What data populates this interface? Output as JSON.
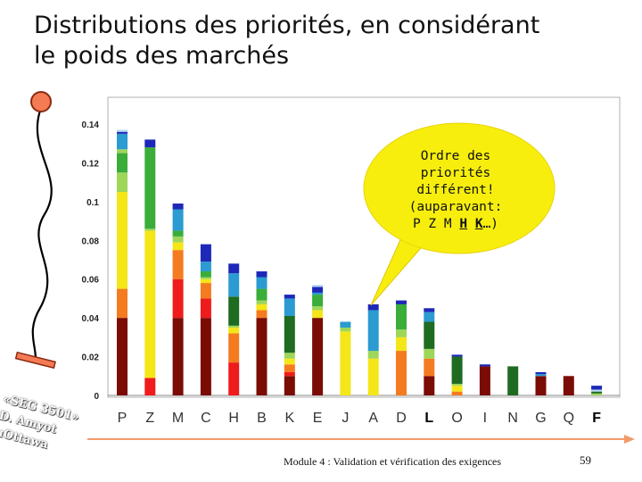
{
  "slide": {
    "title_line1": "Distributions des priorités, en considérant",
    "title_line2": "le poids des marchés",
    "callout": {
      "line1": "Ordre des",
      "line2": "priorités",
      "line3": "différent!",
      "line4": "(auparavant:",
      "line5a": "P Z M ",
      "line5b": "H",
      "line5c": " ",
      "line5d": "K",
      "line5e": "…)"
    },
    "stamp": {
      "line1": "«SEG 3501»",
      "line2": "D. Amyot",
      "line3": "uOttawa"
    },
    "footer": "Module 4 : Validation et vérification des exigences",
    "page_number": "59"
  },
  "colors": {
    "darkred": "#7a0c05",
    "red": "#ee1c1c",
    "orange": "#f47b20",
    "yellow": "#f5e619",
    "lightgreen": "#9ed65a",
    "green": "#3aad3a",
    "darkgreen": "#1e6b21",
    "cyan": "#2b9bd1",
    "navy": "#1d28b8",
    "ltblue": "#b3d7f0"
  },
  "chart_data": {
    "type": "stacked-bar",
    "ylim": [
      0,
      0.14
    ],
    "yticks": [
      "0",
      "0.02",
      "0.04",
      "0.06",
      "0.08",
      "0.1",
      "0.12",
      "0.14"
    ],
    "categories": [
      "P",
      "Z",
      "M",
      "C",
      "H",
      "B",
      "K",
      "E",
      "J",
      "A",
      "D",
      "L",
      "O",
      "I",
      "N",
      "G",
      "Q",
      "F"
    ],
    "bold_categories": [
      "L",
      "F"
    ],
    "segments": [
      [
        [
          "darkred",
          0.04
        ],
        [
          "orange",
          0.015
        ],
        [
          "yellow",
          0.05
        ],
        [
          "lightgreen",
          0.01
        ],
        [
          "green",
          0.01
        ],
        [
          "lightgreen",
          0.002
        ],
        [
          "cyan",
          0.008
        ],
        [
          "navy",
          0.001
        ],
        [
          "ltblue",
          0.001
        ]
      ],
      [
        [
          "red",
          0.009
        ],
        [
          "yellow",
          0.076
        ],
        [
          "lightgreen",
          0.001
        ],
        [
          "green",
          0.042
        ],
        [
          "navy",
          0.004
        ]
      ],
      [
        [
          "darkred",
          0.04
        ],
        [
          "red",
          0.02
        ],
        [
          "orange",
          0.015
        ],
        [
          "yellow",
          0.004
        ],
        [
          "lightgreen",
          0.003
        ],
        [
          "green",
          0.003
        ],
        [
          "cyan",
          0.011
        ],
        [
          "navy",
          0.003
        ]
      ],
      [
        [
          "darkred",
          0.04
        ],
        [
          "red",
          0.01
        ],
        [
          "orange",
          0.008
        ],
        [
          "yellow",
          0.002
        ],
        [
          "lightgreen",
          0.001
        ],
        [
          "green",
          0.003
        ],
        [
          "cyan",
          0.005
        ],
        [
          "navy",
          0.009
        ]
      ],
      [
        [
          "red",
          0.017
        ],
        [
          "orange",
          0.015
        ],
        [
          "yellow",
          0.003
        ],
        [
          "lightgreen",
          0.001
        ],
        [
          "darkgreen",
          0.015
        ],
        [
          "cyan",
          0.012
        ],
        [
          "navy",
          0.005
        ]
      ],
      [
        [
          "darkred",
          0.04
        ],
        [
          "orange",
          0.004
        ],
        [
          "yellow",
          0.003
        ],
        [
          "lightgreen",
          0.002
        ],
        [
          "green",
          0.006
        ],
        [
          "cyan",
          0.006
        ],
        [
          "navy",
          0.003
        ]
      ],
      [
        [
          "darkred",
          0.01
        ],
        [
          "red",
          0.002
        ],
        [
          "orange",
          0.004
        ],
        [
          "yellow",
          0.003
        ],
        [
          "lightgreen",
          0.003
        ],
        [
          "darkgreen",
          0.019
        ],
        [
          "cyan",
          0.009
        ],
        [
          "navy",
          0.002
        ]
      ],
      [
        [
          "darkred",
          0.04
        ],
        [
          "yellow",
          0.004
        ],
        [
          "lightgreen",
          0.002
        ],
        [
          "green",
          0.006
        ],
        [
          "cyan",
          0.001
        ],
        [
          "navy",
          0.003
        ],
        [
          "ltblue",
          0.001
        ]
      ],
      [
        [
          "yellow",
          0.033
        ],
        [
          "lightgreen",
          0.002
        ],
        [
          "cyan",
          0.003
        ]
      ],
      [
        [
          "yellow",
          0.019
        ],
        [
          "lightgreen",
          0.004
        ],
        [
          "cyan",
          0.021
        ],
        [
          "navy",
          0.003
        ]
      ],
      [
        [
          "orange",
          0.023
        ],
        [
          "yellow",
          0.007
        ],
        [
          "lightgreen",
          0.004
        ],
        [
          "green",
          0.013
        ],
        [
          "navy",
          0.002
        ]
      ],
      [
        [
          "darkred",
          0.01
        ],
        [
          "orange",
          0.009
        ],
        [
          "lightgreen",
          0.005
        ],
        [
          "darkgreen",
          0.014
        ],
        [
          "cyan",
          0.005
        ],
        [
          "navy",
          0.002
        ]
      ],
      [
        [
          "orange",
          0.002
        ],
        [
          "yellow",
          0.003
        ],
        [
          "lightgreen",
          0.001
        ],
        [
          "darkgreen",
          0.014
        ],
        [
          "navy",
          0.001
        ]
      ],
      [
        [
          "darkred",
          0.015
        ],
        [
          "navy",
          0.001
        ]
      ],
      [
        [
          "darkgreen",
          0.015
        ]
      ],
      [
        [
          "darkred",
          0.01
        ],
        [
          "cyan",
          0.001
        ],
        [
          "navy",
          0.001
        ]
      ],
      [
        [
          "darkred",
          0.01
        ]
      ],
      [
        [
          "lightgreen",
          0.001
        ],
        [
          "darkgreen",
          0.001
        ],
        [
          "ltblue",
          0.001
        ],
        [
          "navy",
          0.002
        ]
      ]
    ]
  }
}
